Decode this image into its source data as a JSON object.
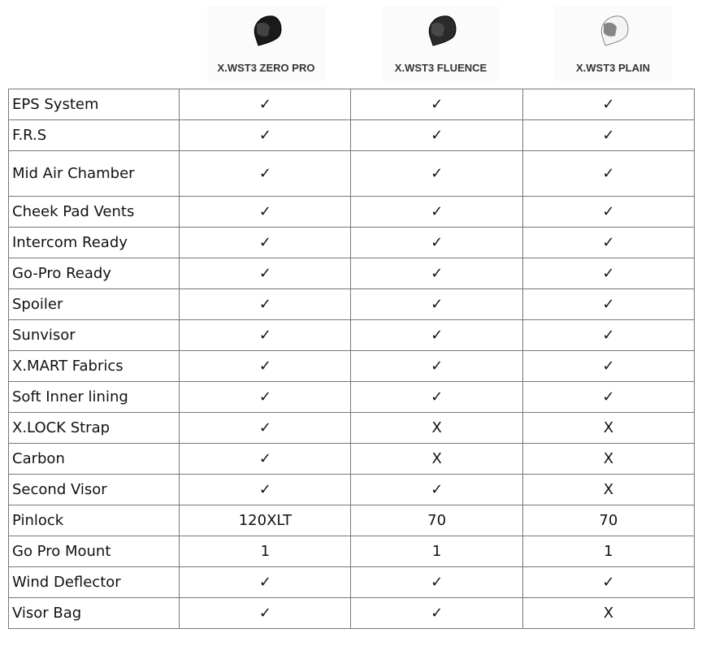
{
  "products": [
    {
      "name": "X.WST3 ZERO PRO",
      "color": "#1a1a1a"
    },
    {
      "name": "X.WST3 FLUENCE",
      "color": "#2a2a2a"
    },
    {
      "name": "X.WST3 PLAIN",
      "color": "#f4f4f4"
    }
  ],
  "rows": [
    {
      "feature": "EPS System",
      "values": [
        "✓",
        "✓",
        "✓"
      ]
    },
    {
      "feature": "F.R.S",
      "values": [
        "✓",
        "✓",
        "✓"
      ]
    },
    {
      "feature": "Mid Air Chamber",
      "values": [
        "✓",
        "✓",
        "✓"
      ]
    },
    {
      "feature": "Cheek Pad Vents",
      "values": [
        "✓",
        "✓",
        "✓"
      ]
    },
    {
      "feature": "Intercom Ready",
      "values": [
        "✓",
        "✓",
        "✓"
      ]
    },
    {
      "feature": "Go-Pro Ready",
      "values": [
        "✓",
        "✓",
        "✓"
      ]
    },
    {
      "feature": "Spoiler",
      "values": [
        "✓",
        "✓",
        "✓"
      ]
    },
    {
      "feature": "Sunvisor",
      "values": [
        "✓",
        "✓",
        "✓"
      ]
    },
    {
      "feature": "X.MART Fabrics",
      "values": [
        "✓",
        "✓",
        "✓"
      ]
    },
    {
      "feature": "Soft Inner lining",
      "values": [
        "✓",
        "✓",
        "✓"
      ]
    },
    {
      "feature": "X.LOCK Strap",
      "values": [
        "✓",
        "X",
        "X"
      ]
    },
    {
      "feature": "Carbon",
      "values": [
        "✓",
        "X",
        "X"
      ]
    },
    {
      "feature": "Second Visor",
      "values": [
        "✓",
        "✓",
        "X"
      ]
    },
    {
      "feature": "Pinlock",
      "values": [
        "120XLT",
        "70",
        "70"
      ]
    },
    {
      "feature": "Go Pro Mount",
      "values": [
        "1",
        "1",
        "1"
      ]
    },
    {
      "feature": "Wind Deflector",
      "values": [
        "✓",
        "✓",
        "✓"
      ]
    },
    {
      "feature": "Visor Bag",
      "values": [
        "✓",
        "✓",
        "X"
      ]
    }
  ]
}
